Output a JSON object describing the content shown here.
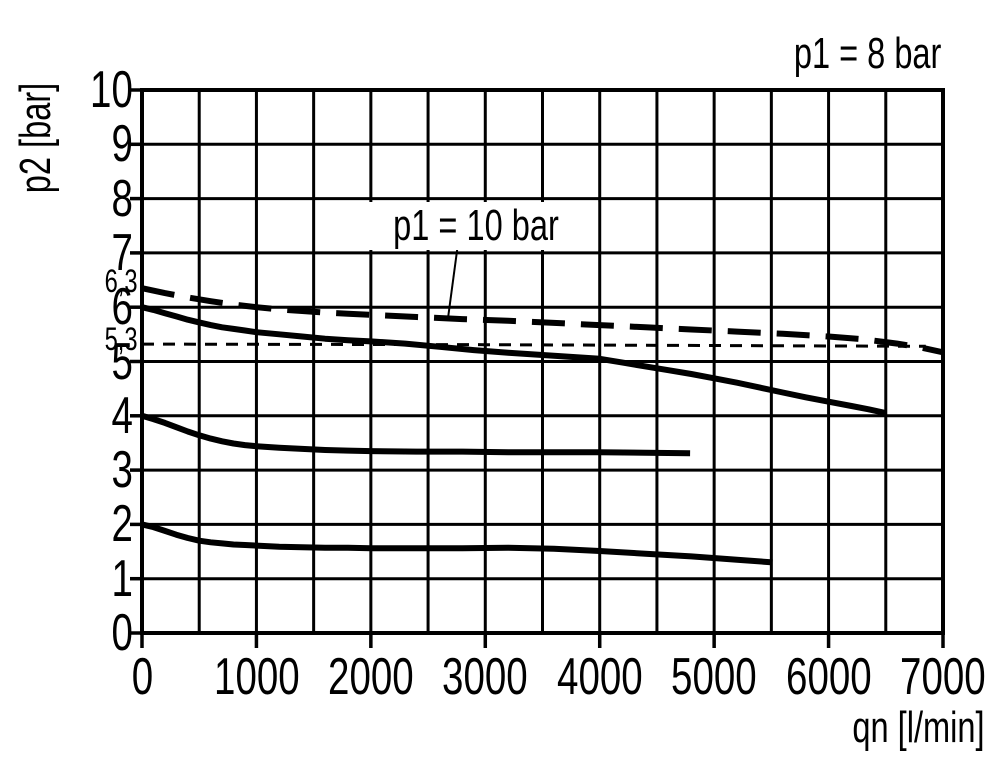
{
  "figure": {
    "title": "p1 = 8 bar",
    "y_axis_label": "p2 [bar]",
    "x_axis_label": "qn [l/min]",
    "annotation": "p1 = 10 bar",
    "left_markers": [
      "6,3",
      "5,3"
    ]
  },
  "chart_data": {
    "type": "line",
    "title": "p1 = 8 bar",
    "xlabel": "qn [l/min]",
    "ylabel": "p2 [bar]",
    "xlim": [
      0,
      7000
    ],
    "ylim": [
      0,
      10
    ],
    "x_ticks": [
      0,
      1000,
      2000,
      3000,
      4000,
      5000,
      6000,
      7000
    ],
    "y_ticks": [
      0,
      1,
      2,
      3,
      4,
      5,
      6,
      7,
      8,
      9,
      10
    ],
    "x_grid_step": 500,
    "y_grid_step": 1,
    "grid": true,
    "legend_position": "none",
    "colors": {
      "foreground": "#000000",
      "background": "#ffffff"
    },
    "annotation": {
      "text": "p1 = 10 bar",
      "points_at_series": "p1 = 10 bar (dashed)",
      "leader_from": [
        2760,
        7.15
      ],
      "leader_to": [
        2675,
        5.81
      ]
    },
    "left_value_markers": [
      {
        "label": "6,3",
        "value": 6.3
      },
      {
        "label": "5,3",
        "value": 5.3
      }
    ],
    "series": [
      {
        "name": "p1 = 10 bar (dashed)",
        "style": "dashed-long",
        "width": 6,
        "points": [
          [
            0,
            6.35
          ],
          [
            200,
            6.26
          ],
          [
            400,
            6.18
          ],
          [
            600,
            6.11
          ],
          [
            800,
            6.05
          ],
          [
            1000,
            6.0
          ],
          [
            1200,
            5.96
          ],
          [
            1400,
            5.93
          ],
          [
            1600,
            5.9
          ],
          [
            1800,
            5.88
          ],
          [
            2000,
            5.86
          ],
          [
            2400,
            5.82
          ],
          [
            2800,
            5.78
          ],
          [
            3200,
            5.75
          ],
          [
            3600,
            5.71
          ],
          [
            4000,
            5.67
          ],
          [
            4400,
            5.63
          ],
          [
            4800,
            5.59
          ],
          [
            5200,
            5.55
          ],
          [
            5600,
            5.51
          ],
          [
            6000,
            5.46
          ],
          [
            6300,
            5.41
          ],
          [
            6600,
            5.33
          ],
          [
            6800,
            5.26
          ],
          [
            7000,
            5.17
          ]
        ]
      },
      {
        "name": "5,3 bar reference (thin dashed)",
        "style": "dashed-short",
        "width": 3,
        "points": [
          [
            0,
            5.32
          ],
          [
            3000,
            5.31
          ],
          [
            6850,
            5.28
          ]
        ]
      },
      {
        "name": "p1 = 8 bar (solid, 6 bar setting)",
        "style": "solid",
        "width": 6,
        "points": [
          [
            0,
            6.0
          ],
          [
            100,
            5.95
          ],
          [
            200,
            5.89
          ],
          [
            300,
            5.83
          ],
          [
            400,
            5.77
          ],
          [
            500,
            5.72
          ],
          [
            600,
            5.67
          ],
          [
            700,
            5.63
          ],
          [
            800,
            5.6
          ],
          [
            900,
            5.57
          ],
          [
            1000,
            5.54
          ],
          [
            1200,
            5.5
          ],
          [
            1400,
            5.46
          ],
          [
            1600,
            5.42
          ],
          [
            1800,
            5.39
          ],
          [
            2000,
            5.37
          ],
          [
            2300,
            5.33
          ],
          [
            2600,
            5.27
          ],
          [
            2900,
            5.21
          ],
          [
            3200,
            5.16
          ],
          [
            3500,
            5.12
          ],
          [
            3800,
            5.08
          ],
          [
            4000,
            5.05
          ],
          [
            4200,
            4.98
          ],
          [
            4400,
            4.91
          ],
          [
            4600,
            4.84
          ],
          [
            4800,
            4.77
          ],
          [
            5000,
            4.69
          ],
          [
            5200,
            4.61
          ],
          [
            5400,
            4.52
          ],
          [
            5600,
            4.43
          ],
          [
            5800,
            4.34
          ],
          [
            6000,
            4.26
          ],
          [
            6200,
            4.18
          ],
          [
            6350,
            4.12
          ],
          [
            6500,
            4.05
          ]
        ]
      },
      {
        "name": "4 bar setting (solid)",
        "style": "solid",
        "width": 6,
        "points": [
          [
            0,
            4.0
          ],
          [
            100,
            3.94
          ],
          [
            200,
            3.87
          ],
          [
            300,
            3.79
          ],
          [
            400,
            3.71
          ],
          [
            500,
            3.64
          ],
          [
            600,
            3.58
          ],
          [
            700,
            3.53
          ],
          [
            800,
            3.49
          ],
          [
            900,
            3.46
          ],
          [
            1000,
            3.44
          ],
          [
            1200,
            3.41
          ],
          [
            1400,
            3.39
          ],
          [
            1600,
            3.37
          ],
          [
            1800,
            3.36
          ],
          [
            2000,
            3.35
          ],
          [
            2400,
            3.34
          ],
          [
            2800,
            3.34
          ],
          [
            3200,
            3.33
          ],
          [
            3600,
            3.33
          ],
          [
            4000,
            3.33
          ],
          [
            4400,
            3.32
          ],
          [
            4790,
            3.31
          ]
        ]
      },
      {
        "name": "2 bar setting (solid)",
        "style": "solid",
        "width": 6,
        "points": [
          [
            0,
            2.0
          ],
          [
            100,
            1.95
          ],
          [
            200,
            1.88
          ],
          [
            300,
            1.81
          ],
          [
            400,
            1.75
          ],
          [
            500,
            1.7
          ],
          [
            600,
            1.67
          ],
          [
            700,
            1.65
          ],
          [
            800,
            1.63
          ],
          [
            900,
            1.62
          ],
          [
            1000,
            1.61
          ],
          [
            1200,
            1.59
          ],
          [
            1400,
            1.58
          ],
          [
            1600,
            1.57
          ],
          [
            1800,
            1.57
          ],
          [
            2000,
            1.56
          ],
          [
            2400,
            1.56
          ],
          [
            2800,
            1.56
          ],
          [
            3200,
            1.57
          ],
          [
            3600,
            1.55
          ],
          [
            4000,
            1.51
          ],
          [
            4400,
            1.46
          ],
          [
            4800,
            1.41
          ],
          [
            5200,
            1.35
          ],
          [
            5510,
            1.3
          ]
        ]
      }
    ]
  }
}
